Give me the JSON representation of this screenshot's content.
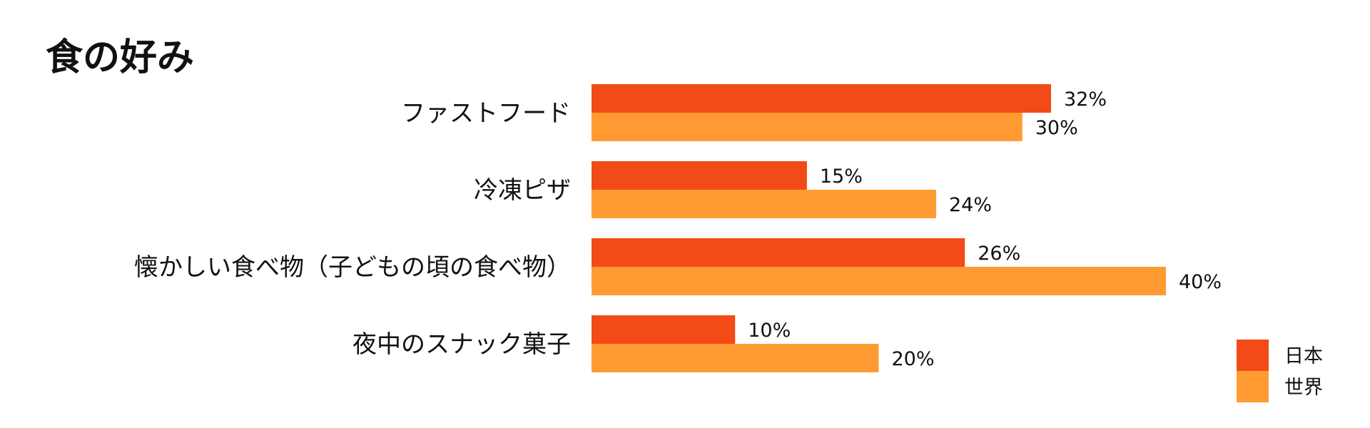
{
  "chart_data": {
    "type": "bar",
    "orientation": "horizontal",
    "title": "食の好み",
    "categories": [
      "ファストフード",
      "冷凍ピザ",
      "懐かしい食べ物（子どもの頃の食べ物）",
      "夜中のスナック菓子"
    ],
    "series": [
      {
        "name": "日本",
        "color": "#F24B17",
        "values": [
          32,
          15,
          26,
          10
        ],
        "labels": [
          "32%",
          "15%",
          "26%",
          "10%"
        ]
      },
      {
        "name": "世界",
        "color": "#FF9B32",
        "values": [
          30,
          24,
          40,
          20
        ],
        "labels": [
          "30%",
          "24%",
          "40%",
          "20%"
        ]
      }
    ],
    "xlim": [
      0,
      40
    ],
    "grid": false,
    "legend_position": "bottom-right"
  }
}
